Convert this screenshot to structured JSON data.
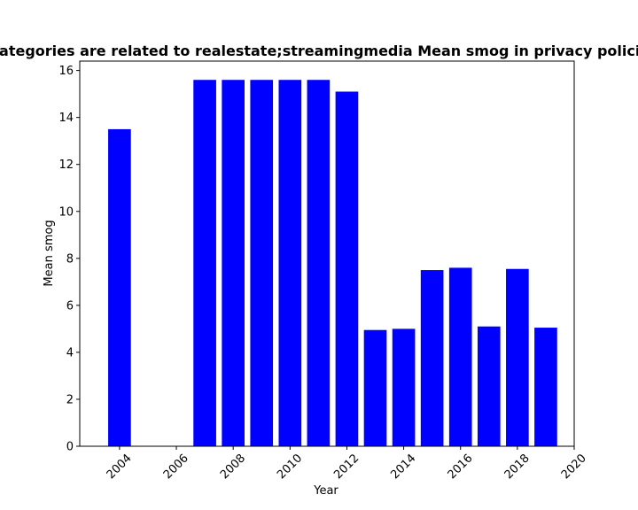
{
  "chart_data": {
    "type": "bar",
    "title": "Categories are related to realestate;streamingmedia Mean smog in privacy policies",
    "xlabel": "Year",
    "ylabel": "Mean smog",
    "x": [
      2004,
      2007,
      2008,
      2009,
      2010,
      2011,
      2012,
      2013,
      2014,
      2015,
      2016,
      2017,
      2018,
      2019
    ],
    "values": [
      13.5,
      15.6,
      15.6,
      15.6,
      15.6,
      15.6,
      15.1,
      4.95,
      5.0,
      7.5,
      7.6,
      5.1,
      7.55,
      5.05
    ],
    "xlim": [
      2002.6,
      2020.0
    ],
    "ylim": [
      0,
      16.4
    ],
    "xticks": [
      "2004",
      "2006",
      "2008",
      "2010",
      "2012",
      "2014",
      "2016",
      "2018",
      "2020"
    ],
    "yticks": [
      "0",
      "2",
      "4",
      "6",
      "8",
      "10",
      "12",
      "14",
      "16"
    ],
    "bar_color": "#0000ff",
    "grid": false,
    "legend": false
  }
}
